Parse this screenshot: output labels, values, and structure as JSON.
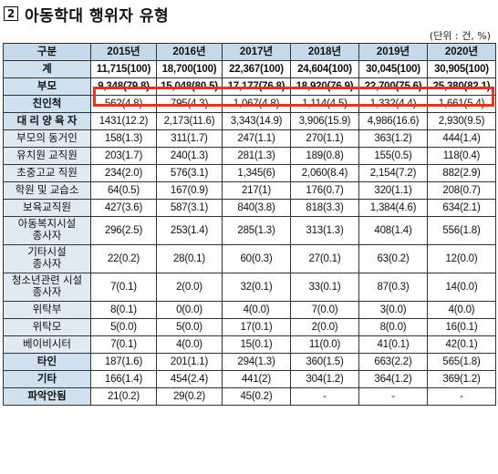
{
  "title": {
    "number": "2",
    "text": "아동학대 행위자 유형"
  },
  "unit": "(단위 : 건, %)",
  "table": {
    "corner": "구분",
    "years": [
      "2015년",
      "2016년",
      "2017년",
      "2018년",
      "2019년",
      "2020년"
    ],
    "rows": [
      {
        "label": "계",
        "values": [
          "11,715(100)",
          "18,700(100)",
          "22,367(100)",
          "24,604(100)",
          "30,045(100)",
          "30,905(100)"
        ]
      },
      {
        "label": "부모",
        "values": [
          "9,348(79.8)",
          "15,048(80.5)",
          "17,177(76.8)",
          "18,920(76.9)",
          "22,700(75.6)",
          "25,380(82.1)"
        ]
      },
      {
        "label": "친인척",
        "values": [
          "562(4.8)",
          "795(4.3)",
          "1,067(4.8)",
          "1,114(4.5)",
          "1,332(4.4)",
          "1,661(5.4)"
        ]
      },
      {
        "label": "대 리 양 육 자",
        "values": [
          "1431(12.2)",
          "2,173(11.6)",
          "3,343(14.9)",
          "3,906(15.9)",
          "4,986(16.6)",
          "2,930(9.5)"
        ]
      },
      {
        "label": "부모의 동거인",
        "values": [
          "158(1.3)",
          "311(1.7)",
          "247(1.1)",
          "270(1.1)",
          "363(1.2)",
          "444(1.4)"
        ]
      },
      {
        "label": "유치원 교직원",
        "values": [
          "203(1.7)",
          "240(1.3)",
          "281(1.3)",
          "189(0.8)",
          "155(0.5)",
          "118(0.4)"
        ]
      },
      {
        "label": "초중고교 직원",
        "values": [
          "234(2.0)",
          "576(3.1)",
          "1,345(6)",
          "2,060(8.4)",
          "2,154(7.2)",
          "882(2.9)"
        ]
      },
      {
        "label": "학원 및 교습소",
        "values": [
          "64(0.5)",
          "167(0.9)",
          "217(1)",
          "176(0.7)",
          "320(1.1)",
          "208(0.7)"
        ]
      },
      {
        "label": "보육교직원",
        "values": [
          "427(3.6)",
          "587(3.1)",
          "840(3.8)",
          "818(3.3)",
          "1,384(4.6)",
          "634(2.1)"
        ]
      },
      {
        "label_lines": [
          "아동복지시설",
          "종사자"
        ],
        "values": [
          "296(2.5)",
          "253(1.4)",
          "285(1.3)",
          "313(1.3)",
          "408(1.4)",
          "556(1.8)"
        ]
      },
      {
        "label_lines": [
          "기타시설",
          "종사자"
        ],
        "values": [
          "22(0.2)",
          "28(0.1)",
          "60(0.3)",
          "27(0.1)",
          "63(0.2)",
          "12(0.0)"
        ]
      },
      {
        "label_lines": [
          "청소년관련 시설",
          "종사자"
        ],
        "values": [
          "7(0.1)",
          "2(0.0)",
          "32(0.1)",
          "33(0.1)",
          "87(0.3)",
          "14(0.0)"
        ]
      },
      {
        "label": "위탁부",
        "values": [
          "8(0.1)",
          "0(0.0)",
          "4(0.0)",
          "7(0.0)",
          "3(0.0)",
          "4(0.0)"
        ]
      },
      {
        "label": "위탁모",
        "values": [
          "5(0.0)",
          "5(0.0)",
          "17(0.1)",
          "2(0.0)",
          "8(0.0)",
          "16(0.1)"
        ]
      },
      {
        "label": "베이비시터",
        "values": [
          "7(0.1)",
          "4(0.0)",
          "15(0.1)",
          "11(0.0)",
          "41(0.1)",
          "42(0.1)"
        ]
      },
      {
        "label": "타인",
        "values": [
          "187(1.6)",
          "201(1.1)",
          "294(1.3)",
          "360(1.5)",
          "663(2.2)",
          "565(1.8)"
        ]
      },
      {
        "label": "기타",
        "values": [
          "166(1.4)",
          "454(2.4)",
          "441(2)",
          "304(1.2)",
          "364(1.2)",
          "369(1.2)"
        ]
      },
      {
        "label": "파악안됨",
        "values": [
          "21(0.2)",
          "29(0.2)",
          "45(0.2)",
          "-",
          "-",
          "-"
        ]
      }
    ]
  },
  "colors": {
    "header_bg": "#c6d9ea",
    "category_bg": "#cfe0ef",
    "sub_bg": "#dfeaf4",
    "highlight": "#e8331e"
  }
}
